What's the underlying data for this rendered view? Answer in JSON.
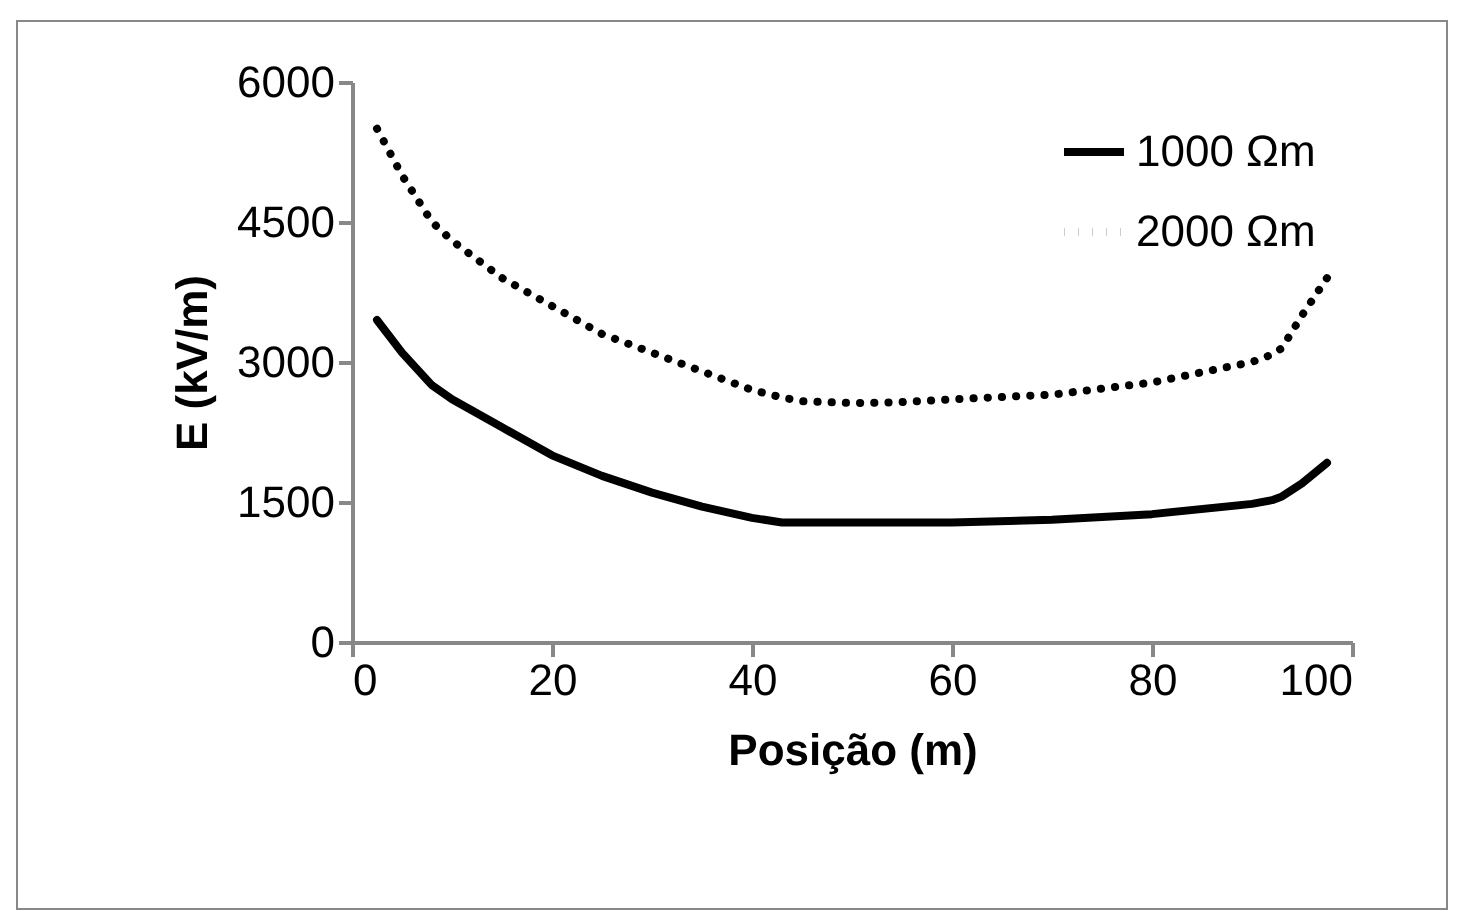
{
  "chart_data": {
    "type": "line",
    "xlabel": "Posição (m)",
    "ylabel": "E (kV/m)",
    "xlim": [
      0,
      100
    ],
    "xticks": [
      0,
      20,
      40,
      60,
      80,
      100
    ],
    "ylim": [
      0,
      6000
    ],
    "yticks": [
      0,
      1500,
      3000,
      4500,
      6000
    ],
    "grid": false,
    "legend": "top right",
    "marker": "none",
    "x": [
      2.5,
      5,
      8,
      10,
      15,
      20,
      25,
      30,
      35,
      40,
      43,
      45,
      50,
      55,
      60,
      70,
      80,
      90,
      92,
      93,
      95,
      97.5
    ],
    "series": [
      {
        "name": "1000 Ωm",
        "color": "#000000",
        "line_style": "solid",
        "values": [
          3450,
          3100,
          2750,
          2600,
          2300,
          2000,
          1780,
          1600,
          1450,
          1330,
          1280,
          1280,
          1280,
          1280,
          1280,
          1310,
          1370,
          1480,
          1520,
          1560,
          1700,
          1920
        ]
      },
      {
        "name": "2000 Ωm",
        "color": "#000000",
        "line_style": "dotted",
        "values": [
          5500,
          5000,
          4500,
          4300,
          3900,
          3600,
          3300,
          3100,
          2900,
          2700,
          2620,
          2580,
          2560,
          2570,
          2600,
          2650,
          2780,
          3000,
          3080,
          3150,
          3500,
          3900
        ]
      }
    ]
  }
}
